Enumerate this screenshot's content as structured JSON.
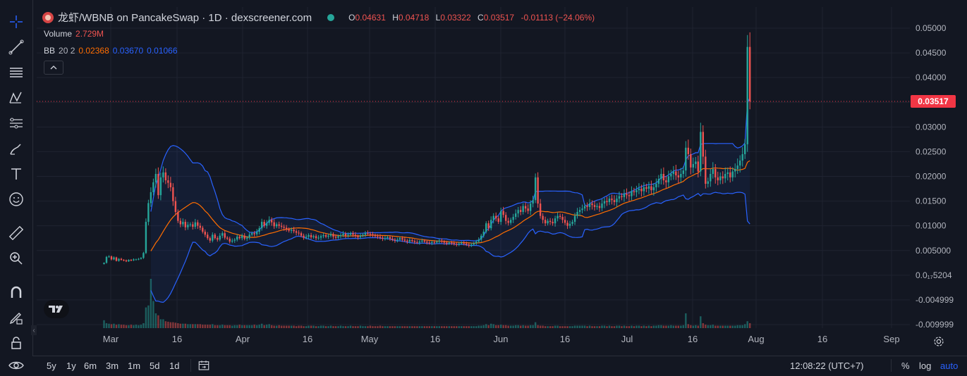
{
  "header": {
    "title": "龙虾/WBNB on PancakeSwap · 1D · dexscreener.com",
    "ohlc": [
      {
        "k": "O",
        "v": "0.04631"
      },
      {
        "k": "H",
        "v": "0.04718"
      },
      {
        "k": "L",
        "v": "0.03322"
      },
      {
        "k": "C",
        "v": "0.03517"
      }
    ],
    "change": "-0.01113 (−24.06%)"
  },
  "volume_legend": {
    "label": "Volume",
    "value": "2.729M"
  },
  "bb_legend": {
    "label": "BB",
    "params": "20 2",
    "basis": "0.02368",
    "upper": "0.03670",
    "lower": "0.01066"
  },
  "last_price": "0.03517",
  "timeframes": [
    "5y",
    "1y",
    "6m",
    "3m",
    "1m",
    "5d",
    "1d"
  ],
  "clock": "12:08:22 (UTC+7)",
  "scale_buttons": {
    "percent": "%",
    "log": "log",
    "auto": "auto"
  },
  "colors": {
    "up": "#26a69a",
    "down": "#ef5350",
    "bb_band": "#2962ff",
    "bb_basis": "#ff6d00",
    "price_line": "#f23645"
  },
  "chart_data": {
    "type": "candlestick",
    "y_axis_labels": [
      "0.05000",
      "0.04500",
      "0.04000",
      "0.03500",
      "0.03000",
      "0.02500",
      "0.02000",
      "0.01500",
      "0.01000",
      "0.005000",
      "0.0₁₇5204",
      "-0.004999",
      "-0.009999"
    ],
    "y_axis_values": [
      0.05,
      0.045,
      0.04,
      0.035,
      0.03,
      0.025,
      0.02,
      0.015,
      0.01,
      0.005,
      0,
      -0.005,
      -0.01
    ],
    "x_axis_labels": [
      "Mar",
      "16",
      "Apr",
      "16",
      "May",
      "16",
      "Jun",
      "16",
      "Jul",
      "16",
      "Aug",
      "16",
      "Sep"
    ],
    "x_axis_dates": [
      "2025-03-01",
      "2025-03-16",
      "2025-04-01",
      "2025-04-16",
      "2025-05-01",
      "2025-05-16",
      "2025-06-01",
      "2025-06-16",
      "2025-07-01",
      "2025-07-16",
      "2025-08-01",
      "2025-08-16",
      "2025-09-01"
    ],
    "close": [
      0.0025,
      0.0037,
      0.0038,
      0.0032,
      0.0036,
      0.0029,
      0.0033,
      0.0031,
      0.003,
      0.0028,
      0.0031,
      0.003,
      0.0032,
      0.0032,
      0.0033,
      0.0035,
      0.0045,
      0.0108,
      0.0146,
      0.0168,
      0.0188,
      0.0205,
      0.0162,
      0.0198,
      0.0208,
      0.0192,
      0.0187,
      0.0178,
      0.015,
      0.0128,
      0.011,
      0.0103,
      0.0108,
      0.0097,
      0.0102,
      0.0103,
      0.0098,
      0.0107,
      0.01,
      0.0096,
      0.0088,
      0.0082,
      0.0075,
      0.007,
      0.0082,
      0.0075,
      0.0072,
      0.008,
      0.0085,
      0.0076,
      0.0074,
      0.0068,
      0.007,
      0.0072,
      0.0078,
      0.0075,
      0.008,
      0.0074,
      0.0076,
      0.0082,
      0.0085,
      0.0083,
      0.0088,
      0.0095,
      0.0108,
      0.01,
      0.0106,
      0.0112,
      0.0107,
      0.0099,
      0.0103,
      0.01,
      0.0098,
      0.0096,
      0.0093,
      0.009,
      0.0092,
      0.0089,
      0.0086,
      0.0085,
      0.008,
      0.0076,
      0.0078,
      0.0081,
      0.0077,
      0.0079,
      0.0075,
      0.0076,
      0.0079,
      0.0081,
      0.0078,
      0.008,
      0.0083,
      0.0078,
      0.0076,
      0.0079,
      0.0081,
      0.0084,
      0.008,
      0.0082,
      0.0085,
      0.0082,
      0.0079,
      0.0077,
      0.008,
      0.0082,
      0.0085,
      0.0084,
      0.0083,
      0.0081,
      0.0079,
      0.0078,
      0.0076,
      0.0074,
      0.0075,
      0.0077,
      0.0074,
      0.0072,
      0.007,
      0.0072,
      0.0075,
      0.0072,
      0.007,
      0.0068,
      0.0071,
      0.0069,
      0.0067,
      0.0066,
      0.0068,
      0.007,
      0.0068,
      0.0066,
      0.0065,
      0.0067,
      0.0066,
      0.0068,
      0.007,
      0.0068,
      0.0066,
      0.0064,
      0.0066,
      0.0065,
      0.0063,
      0.0062,
      0.0064,
      0.0066,
      0.0064,
      0.0062,
      0.006,
      0.0062,
      0.0065,
      0.0068,
      0.0072,
      0.008,
      0.0088,
      0.0105,
      0.0095,
      0.0112,
      0.012,
      0.0115,
      0.0108,
      0.013,
      0.0122,
      0.011,
      0.0106,
      0.0112,
      0.0118,
      0.0125,
      0.0132,
      0.0128,
      0.014,
      0.0135,
      0.013,
      0.0145,
      0.0152,
      0.0198,
      0.0145,
      0.012,
      0.0112,
      0.0105,
      0.011,
      0.0108,
      0.0105,
      0.0115,
      0.012,
      0.0118,
      0.0112,
      0.0106,
      0.01,
      0.0104,
      0.0108,
      0.012,
      0.0128,
      0.0132,
      0.0135,
      0.014,
      0.0138,
      0.0145,
      0.0142,
      0.0138,
      0.014,
      0.0136,
      0.0145,
      0.015,
      0.0148,
      0.0155,
      0.0152,
      0.0148,
      0.0155,
      0.016,
      0.0158,
      0.0165,
      0.0162,
      0.016,
      0.017,
      0.0168,
      0.0172,
      0.0175,
      0.017,
      0.0178,
      0.0175,
      0.018,
      0.0172,
      0.0178,
      0.0185,
      0.0195,
      0.0205,
      0.0192,
      0.0188,
      0.02,
      0.0205,
      0.021,
      0.0202,
      0.0198,
      0.0205,
      0.0212,
      0.0258,
      0.0245,
      0.0218,
      0.0225,
      0.023,
      0.021,
      0.029,
      0.024,
      0.0185,
      0.019,
      0.0205,
      0.0215,
      0.0198,
      0.0192,
      0.02,
      0.0196,
      0.0205,
      0.0208,
      0.0198,
      0.021,
      0.0215,
      0.0222,
      0.0232,
      0.0245,
      0.0265,
      0.0462,
      0.0352
    ],
    "bb_start_index": 19,
    "volume_relative": [
      0.16,
      0.1,
      0.09,
      0.08,
      0.09,
      0.07,
      0.08,
      0.07,
      0.07,
      0.06,
      0.06,
      0.07,
      0.06,
      0.07,
      0.06,
      0.07,
      0.1,
      0.42,
      0.46,
      1.0,
      0.55,
      0.3,
      0.26,
      0.18,
      0.18,
      0.14,
      0.13,
      0.12,
      0.12,
      0.11,
      0.1,
      0.09,
      0.09,
      0.09,
      0.08,
      0.08,
      0.08,
      0.08,
      0.08,
      0.08,
      0.07,
      0.07,
      0.07,
      0.07,
      0.08,
      0.06,
      0.06,
      0.06,
      0.07,
      0.06,
      0.06,
      0.06,
      0.05,
      0.06,
      0.06,
      0.07,
      0.06,
      0.06,
      0.06,
      0.06,
      0.06,
      0.07,
      0.06,
      0.07,
      0.09,
      0.06,
      0.07,
      0.08,
      0.06,
      0.05,
      0.05,
      0.06,
      0.05,
      0.05,
      0.05,
      0.05,
      0.05,
      0.05,
      0.04,
      0.05,
      0.05,
      0.04,
      0.04,
      0.05,
      0.05,
      0.05,
      0.04,
      0.04,
      0.05,
      0.05,
      0.04,
      0.04,
      0.05,
      0.04,
      0.04,
      0.04,
      0.05,
      0.04,
      0.04,
      0.04,
      0.05,
      0.04,
      0.04,
      0.04,
      0.05,
      0.04,
      0.04,
      0.04,
      0.05,
      0.04,
      0.04,
      0.04,
      0.05,
      0.04,
      0.04,
      0.04,
      0.04,
      0.04,
      0.04,
      0.04,
      0.04,
      0.04,
      0.04,
      0.04,
      0.04,
      0.04,
      0.04,
      0.04,
      0.04,
      0.04,
      0.04,
      0.04,
      0.04,
      0.04,
      0.04,
      0.04,
      0.04,
      0.04,
      0.04,
      0.04,
      0.04,
      0.04,
      0.04,
      0.04,
      0.04,
      0.04,
      0.04,
      0.04,
      0.04,
      0.04,
      0.04,
      0.04,
      0.05,
      0.05,
      0.06,
      0.08,
      0.06,
      0.09,
      0.08,
      0.06,
      0.06,
      0.07,
      0.06,
      0.06,
      0.05,
      0.05,
      0.05,
      0.06,
      0.06,
      0.05,
      0.06,
      0.05,
      0.05,
      0.06,
      0.06,
      0.12,
      0.06,
      0.05,
      0.05,
      0.04,
      0.04,
      0.04,
      0.04,
      0.05,
      0.05,
      0.04,
      0.04,
      0.04,
      0.04,
      0.04,
      0.04,
      0.05,
      0.05,
      0.05,
      0.05,
      0.05,
      0.04,
      0.05,
      0.04,
      0.04,
      0.04,
      0.04,
      0.05,
      0.05,
      0.04,
      0.05,
      0.04,
      0.04,
      0.05,
      0.05,
      0.04,
      0.05,
      0.04,
      0.04,
      0.05,
      0.04,
      0.05,
      0.05,
      0.04,
      0.05,
      0.04,
      0.05,
      0.04,
      0.05,
      0.05,
      0.06,
      0.06,
      0.05,
      0.05,
      0.05,
      0.06,
      0.05,
      0.05,
      0.05,
      0.05,
      0.06,
      0.3,
      0.08,
      0.06,
      0.05,
      0.06,
      0.05,
      0.24,
      0.1,
      0.07,
      0.06,
      0.06,
      0.07,
      0.05,
      0.05,
      0.05,
      0.05,
      0.05,
      0.05,
      0.05,
      0.05,
      0.05,
      0.06,
      0.06,
      0.06,
      0.08,
      0.14,
      0.1
    ]
  }
}
